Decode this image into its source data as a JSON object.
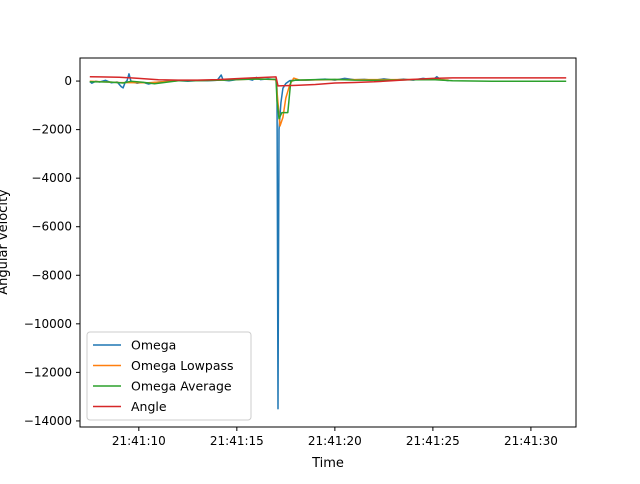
{
  "chart_data": {
    "type": "line",
    "title": "",
    "xlabel": "Time",
    "ylabel": "Angular velocity",
    "grid": false,
    "legend_placement": "lower-left",
    "xlim": [
      "21:41:07.0",
      "21:41:32.3"
    ],
    "ylim": [
      -14250,
      950
    ],
    "x_ticks": [
      "21:41:10",
      "21:41:15",
      "21:41:20",
      "21:41:25",
      "21:41:30"
    ],
    "y_ticks": [
      0,
      -2000,
      -4000,
      -6000,
      -8000,
      -10000,
      -12000,
      -14000
    ],
    "y_tick_labels": [
      "0",
      "−2000",
      "−4000",
      "−6000",
      "−8000",
      "−10000",
      "−12000",
      "−14000"
    ],
    "series": [
      {
        "name": "Omega",
        "color": "#1f77b4",
        "points": [
          [
            "21:41:07.5",
            -20
          ],
          [
            "21:41:07.6",
            -90
          ],
          [
            "21:41:07.8",
            -10
          ],
          [
            "21:41:08.0",
            -40
          ],
          [
            "21:41:08.3",
            30
          ],
          [
            "21:41:08.6",
            -70
          ],
          [
            "21:41:08.9",
            -40
          ],
          [
            "21:41:09.1",
            -230
          ],
          [
            "21:41:09.2",
            -280
          ],
          [
            "21:41:09.3",
            -60
          ],
          [
            "21:41:09.4",
            20
          ],
          [
            "21:41:09.5",
            300
          ],
          [
            "21:41:09.6",
            -20
          ],
          [
            "21:41:09.9",
            -90
          ],
          [
            "21:41:10.2",
            -50
          ],
          [
            "21:41:10.5",
            -120
          ],
          [
            "21:41:10.8",
            -60
          ],
          [
            "21:41:11.2",
            -30
          ],
          [
            "21:41:11.6",
            0
          ],
          [
            "21:41:12.0",
            20
          ],
          [
            "21:41:12.5",
            -10
          ],
          [
            "21:41:13.0",
            20
          ],
          [
            "21:41:13.5",
            10
          ],
          [
            "21:41:14.0",
            30
          ],
          [
            "21:41:14.2",
            250
          ],
          [
            "21:41:14.3",
            40
          ],
          [
            "21:41:14.6",
            10
          ],
          [
            "21:41:15.0",
            60
          ],
          [
            "21:41:15.5",
            100
          ],
          [
            "21:41:15.8",
            40
          ],
          [
            "21:41:16.0",
            150
          ],
          [
            "21:41:16.2",
            60
          ],
          [
            "21:41:16.6",
            90
          ],
          [
            "21:41:17.0",
            60
          ],
          [
            "21:41:17.05",
            -300
          ],
          [
            "21:41:17.1",
            -13500
          ],
          [
            "21:41:17.15",
            -2000
          ],
          [
            "21:41:17.25",
            -900
          ],
          [
            "21:41:17.35",
            -300
          ],
          [
            "21:41:17.5",
            -100
          ],
          [
            "21:41:17.7",
            20
          ],
          [
            "21:41:18.0",
            40
          ],
          [
            "21:41:18.5",
            30
          ],
          [
            "21:41:19.0",
            50
          ],
          [
            "21:41:19.5",
            80
          ],
          [
            "21:41:20.0",
            40
          ],
          [
            "21:41:20.5",
            110
          ],
          [
            "21:41:21.0",
            50
          ],
          [
            "21:41:21.5",
            70
          ],
          [
            "21:41:22.0",
            30
          ],
          [
            "21:41:22.5",
            90
          ],
          [
            "21:41:23.0",
            40
          ],
          [
            "21:41:23.5",
            80
          ],
          [
            "21:41:24.0",
            40
          ],
          [
            "21:41:24.5",
            110
          ],
          [
            "21:41:25.0",
            50
          ],
          [
            "21:41:25.2",
            180
          ],
          [
            "21:41:25.4",
            60
          ],
          [
            "21:41:25.8",
            20
          ]
        ]
      },
      {
        "name": "Omega Lowpass",
        "color": "#ff7f0e",
        "points": [
          [
            "21:41:07.5",
            -10
          ],
          [
            "21:41:09.0",
            -60
          ],
          [
            "21:41:10.5",
            -70
          ],
          [
            "21:41:12.0",
            10
          ],
          [
            "21:41:14.0",
            30
          ],
          [
            "21:41:16.0",
            90
          ],
          [
            "21:41:17.0",
            60
          ],
          [
            "21:41:17.1",
            -900
          ],
          [
            "21:41:17.2",
            -1850
          ],
          [
            "21:41:17.35",
            -1500
          ],
          [
            "21:41:17.5",
            -700
          ],
          [
            "21:41:17.7",
            -150
          ],
          [
            "21:41:17.9",
            120
          ],
          [
            "21:41:18.2",
            40
          ],
          [
            "21:41:20.0",
            60
          ],
          [
            "21:41:23.0",
            60
          ],
          [
            "21:41:25.0",
            70
          ],
          [
            "21:41:25.8",
            40
          ]
        ]
      },
      {
        "name": "Omega Average",
        "color": "#2ca02c",
        "points": [
          [
            "21:41:07.5",
            -30
          ],
          [
            "21:41:08.5",
            -40
          ],
          [
            "21:41:09.2",
            -80
          ],
          [
            "21:41:09.6",
            -10
          ],
          [
            "21:41:10.2",
            -50
          ],
          [
            "21:41:10.8",
            -110
          ],
          [
            "21:41:11.3",
            -60
          ],
          [
            "21:41:12.0",
            10
          ],
          [
            "21:41:13.0",
            20
          ],
          [
            "21:41:14.0",
            30
          ],
          [
            "21:41:15.0",
            60
          ],
          [
            "21:41:16.0",
            80
          ],
          [
            "21:41:17.0",
            70
          ],
          [
            "21:41:17.05",
            -800
          ],
          [
            "21:41:17.15",
            -1550
          ],
          [
            "21:41:17.3",
            -1300
          ],
          [
            "21:41:17.6",
            -1300
          ],
          [
            "21:41:17.75",
            0
          ],
          [
            "21:41:18.0",
            40
          ],
          [
            "21:41:19.0",
            60
          ],
          [
            "21:41:20.0",
            70
          ],
          [
            "21:41:21.0",
            40
          ],
          [
            "21:41:22.0",
            30
          ],
          [
            "21:41:23.0",
            40
          ],
          [
            "21:41:24.0",
            50
          ],
          [
            "21:41:25.0",
            60
          ],
          [
            "21:41:26.0",
            10
          ],
          [
            "21:41:28.0",
            -10
          ],
          [
            "21:41:30.0",
            -10
          ],
          [
            "21:41:31.8",
            -10
          ]
        ]
      },
      {
        "name": "Angle",
        "color": "#d62728",
        "points": [
          [
            "21:41:07.5",
            180
          ],
          [
            "21:41:08.0",
            170
          ],
          [
            "21:41:09.0",
            160
          ],
          [
            "21:41:10.0",
            110
          ],
          [
            "21:41:11.0",
            50
          ],
          [
            "21:41:12.0",
            40
          ],
          [
            "21:41:13.0",
            40
          ],
          [
            "21:41:14.0",
            60
          ],
          [
            "21:41:15.0",
            100
          ],
          [
            "21:41:16.0",
            140
          ],
          [
            "21:41:17.0",
            170
          ],
          [
            "21:41:17.1",
            -200
          ],
          [
            "21:41:18.0",
            -180
          ],
          [
            "21:41:19.0",
            -140
          ],
          [
            "21:41:20.0",
            -80
          ],
          [
            "21:41:21.0",
            -60
          ],
          [
            "21:41:22.0",
            -30
          ],
          [
            "21:41:23.0",
            20
          ],
          [
            "21:41:24.0",
            70
          ],
          [
            "21:41:25.0",
            110
          ],
          [
            "21:41:26.0",
            130
          ],
          [
            "21:41:28.0",
            130
          ],
          [
            "21:41:30.0",
            130
          ],
          [
            "21:41:31.8",
            130
          ]
        ]
      }
    ]
  }
}
